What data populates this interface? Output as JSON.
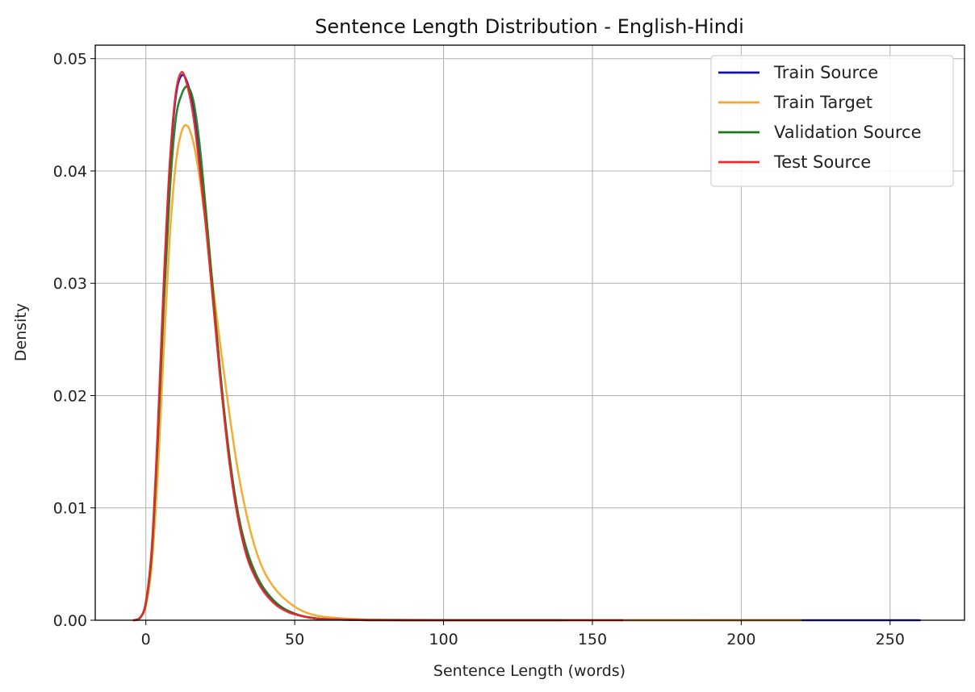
{
  "chart_data": {
    "type": "line",
    "title": "Sentence Length Distribution - English-Hindi",
    "xlabel": "Sentence Length (words)",
    "ylabel": "Density",
    "xlim": [
      -17,
      275
    ],
    "ylim": [
      0,
      0.0512
    ],
    "xticks": [
      0,
      50,
      100,
      150,
      200,
      250
    ],
    "yticks": [
      0.0,
      0.01,
      0.02,
      0.03,
      0.04,
      0.05
    ],
    "xtick_labels": [
      "0",
      "50",
      "100",
      "150",
      "200",
      "250"
    ],
    "ytick_labels": [
      "0.00",
      "0.01",
      "0.02",
      "0.03",
      "0.04",
      "0.05"
    ],
    "grid": true,
    "legend_position": "top-right",
    "series": [
      {
        "name": "Train Source",
        "color": "#1010b0",
        "x": [
          -4,
          -2,
          0,
          2,
          4,
          6,
          8,
          10,
          12,
          14,
          16,
          18,
          20,
          22,
          25,
          28,
          31,
          34,
          37,
          40,
          44,
          48,
          52,
          56,
          60,
          70,
          80,
          100,
          130,
          160,
          200,
          230,
          260
        ],
        "y": [
          0,
          0.0002,
          0.0015,
          0.006,
          0.016,
          0.029,
          0.04,
          0.0465,
          0.0485,
          0.0478,
          0.0455,
          0.041,
          0.036,
          0.0305,
          0.022,
          0.0145,
          0.0092,
          0.0058,
          0.0038,
          0.0025,
          0.0014,
          0.0008,
          0.0004,
          0.0002,
          0.0001,
          3e-05,
          1e-05,
          5e-06,
          2e-06,
          1e-06,
          0,
          0,
          0
        ]
      },
      {
        "name": "Train Target",
        "color": "#f0a828",
        "x": [
          -4,
          -2,
          0,
          2,
          4,
          6,
          8,
          10,
          12,
          14,
          16,
          18,
          20,
          22,
          25,
          28,
          31,
          34,
          37,
          40,
          44,
          48,
          52,
          56,
          60,
          70,
          80,
          100,
          130,
          160,
          200,
          220
        ],
        "y": [
          0,
          0.0002,
          0.0013,
          0.005,
          0.013,
          0.024,
          0.034,
          0.0405,
          0.0435,
          0.044,
          0.0425,
          0.0395,
          0.0355,
          0.031,
          0.0245,
          0.0185,
          0.0132,
          0.0092,
          0.0062,
          0.0042,
          0.0026,
          0.0016,
          0.0009,
          0.0005,
          0.0003,
          0.0001,
          4e-05,
          1e-05,
          4e-06,
          2e-06,
          0,
          0
        ]
      },
      {
        "name": "Validation Source",
        "color": "#1a7a1a",
        "x": [
          -4,
          -2,
          0,
          2,
          4,
          6,
          8,
          10,
          12,
          14,
          16,
          18,
          20,
          22,
          25,
          28,
          31,
          34,
          37,
          40,
          44,
          48,
          52,
          56,
          60,
          70,
          80,
          100,
          120,
          140
        ],
        "y": [
          0,
          0.0002,
          0.0015,
          0.006,
          0.016,
          0.028,
          0.038,
          0.0445,
          0.0468,
          0.0475,
          0.0462,
          0.0425,
          0.037,
          0.031,
          0.022,
          0.0148,
          0.0095,
          0.0062,
          0.0041,
          0.0027,
          0.0015,
          0.0008,
          0.0004,
          0.0002,
          0.0001,
          3e-05,
          1e-05,
          3e-06,
          0,
          0
        ]
      },
      {
        "name": "Test Source",
        "color": "#e8282a",
        "x": [
          -4,
          -2,
          0,
          2,
          4,
          6,
          8,
          10,
          12,
          14,
          16,
          18,
          20,
          22,
          25,
          28,
          31,
          34,
          37,
          40,
          44,
          48,
          52,
          56,
          60,
          70,
          80,
          100,
          130,
          160
        ],
        "y": [
          0,
          0.0002,
          0.0016,
          0.0065,
          0.017,
          0.03,
          0.0405,
          0.0468,
          0.0488,
          0.0475,
          0.0448,
          0.0405,
          0.0355,
          0.03,
          0.0215,
          0.0142,
          0.009,
          0.0056,
          0.0037,
          0.0024,
          0.0013,
          0.0007,
          0.0004,
          0.0002,
          0.0001,
          3e-05,
          1e-05,
          3e-06,
          0,
          0
        ]
      }
    ]
  }
}
